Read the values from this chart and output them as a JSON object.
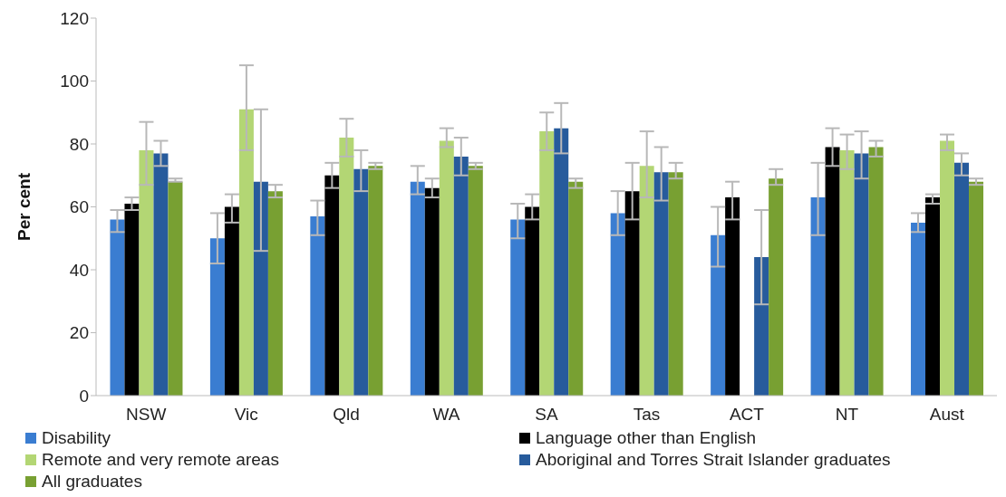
{
  "chart_data": {
    "type": "bar",
    "ylabel": "Per cent",
    "categories": [
      "NSW",
      "Vic",
      "Qld",
      "WA",
      "SA",
      "Tas",
      "ACT",
      "NT",
      "Aust"
    ],
    "ylim": [
      0,
      120
    ],
    "yticks": [
      0,
      20,
      40,
      60,
      80,
      100,
      120
    ],
    "legend": "bottom",
    "series": [
      {
        "name": "Disability",
        "color": "#3a7dd1",
        "values": [
          56,
          50,
          57,
          68,
          56,
          58,
          51,
          63,
          55
        ],
        "errors": [
          [
            52,
            59
          ],
          [
            42,
            58
          ],
          [
            51,
            62
          ],
          [
            64,
            73
          ],
          [
            50,
            61
          ],
          [
            51,
            65
          ],
          [
            41,
            60
          ],
          [
            51,
            74
          ],
          [
            52,
            58
          ]
        ]
      },
      {
        "name": "Language other than English",
        "color": "#000000",
        "values": [
          61,
          60,
          70,
          66,
          60,
          65,
          63,
          79,
          63
        ],
        "errors": [
          [
            59,
            63
          ],
          [
            55,
            64
          ],
          [
            66,
            74
          ],
          [
            63,
            69
          ],
          [
            56,
            64
          ],
          [
            56,
            74
          ],
          [
            56,
            68
          ],
          [
            73,
            85
          ],
          [
            61,
            64
          ]
        ]
      },
      {
        "name": "Remote and very remote areas",
        "color": "#b3d674",
        "values": [
          78,
          91,
          82,
          81,
          84,
          73,
          null,
          78,
          81
        ],
        "errors": [
          [
            67,
            87
          ],
          [
            78,
            105
          ],
          [
            76,
            88
          ],
          [
            79,
            85
          ],
          [
            78,
            90
          ],
          [
            63,
            84
          ],
          null,
          [
            72,
            83
          ],
          [
            78,
            83
          ]
        ]
      },
      {
        "name": "Aboriginal and Torres Strait Islander graduates",
        "color": "#275b9c",
        "values": [
          77,
          68,
          72,
          76,
          85,
          71,
          44,
          77,
          74
        ],
        "errors": [
          [
            73,
            81
          ],
          [
            46,
            91
          ],
          [
            65,
            78
          ],
          [
            70,
            82
          ],
          [
            77,
            93
          ],
          [
            62,
            79
          ],
          [
            29,
            59
          ],
          [
            69,
            84
          ],
          [
            70,
            77
          ]
        ]
      },
      {
        "name": "All graduates",
        "color": "#78a032",
        "values": [
          68,
          65,
          73,
          73,
          68,
          71,
          69,
          79,
          68
        ],
        "errors": [
          [
            68,
            69
          ],
          [
            63,
            67
          ],
          [
            72,
            74
          ],
          [
            72,
            74
          ],
          [
            66,
            69
          ],
          [
            69,
            74
          ],
          [
            67,
            72
          ],
          [
            76,
            81
          ],
          [
            67,
            69
          ]
        ]
      }
    ]
  }
}
